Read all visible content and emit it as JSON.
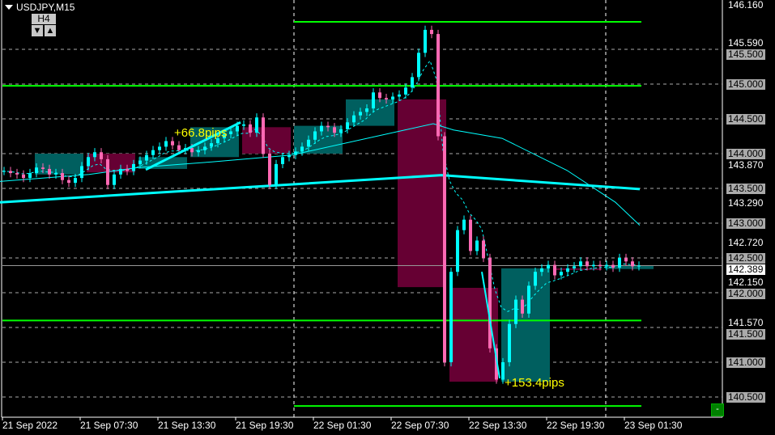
{
  "window": {
    "symbol_title": "USDJPY,M15",
    "timeframe_button": "H4",
    "down_button": "▼",
    "up_button": "▲",
    "minimize_button": "-"
  },
  "colors": {
    "background": "#000000",
    "bull": "#00ffff",
    "bear": "#ff69b4",
    "h4_bull_box": "#005f5f",
    "h4_bear_box": "#660033",
    "level_line": "#00ff00",
    "ma": "#00ffff",
    "grid": "#aaaaaa",
    "label": "#ffff00"
  },
  "chart_data": {
    "type": "candlestick",
    "symbol": "USDJPY",
    "timeframe": "M15",
    "ylim": [
      140.43,
      146.16
    ],
    "y_ticks": [
      "146.160",
      "145.590",
      "145.500",
      "145.000",
      "144.500",
      "144.000",
      "143.870",
      "143.500",
      "143.290",
      "143.000",
      "142.720",
      "142.500",
      "142.150",
      "142.000",
      "141.570",
      "141.500",
      "141.000",
      "140.500"
    ],
    "y_tick_values": [
      146.16,
      145.59,
      145.5,
      145.0,
      144.5,
      144.0,
      143.87,
      143.5,
      143.29,
      143.0,
      142.72,
      142.5,
      142.15,
      142.0,
      141.57,
      141.5,
      141.0,
      140.5
    ],
    "boxed_ticks": [
      145.5,
      145.0,
      144.5,
      144.0,
      143.5,
      143.0,
      142.5,
      142.0,
      141.5,
      141.0,
      140.5
    ],
    "current_price": "142.389",
    "x_ticks": [
      "21 Sep 2022",
      "21 Sep 07:30",
      "21 Sep 13:30",
      "21 Sep 19:30",
      "22 Sep 01:30",
      "22 Sep 07:30",
      "22 Sep 13:30",
      "22 Sep 19:30",
      "23 Sep 01:30"
    ],
    "closes_30min": [
      143.75,
      143.72,
      143.7,
      143.65,
      143.72,
      143.8,
      143.78,
      143.7,
      143.72,
      143.62,
      143.58,
      143.65,
      143.82,
      143.95,
      144.02,
      143.92,
      143.55,
      143.7,
      143.78,
      143.75,
      143.85,
      143.9,
      143.98,
      144.05,
      144.1,
      144.18,
      144.12,
      144.05,
      144.08,
      144.02,
      144.05,
      144.1,
      144.15,
      144.22,
      144.28,
      144.32,
      144.4,
      144.42,
      144.3,
      144.52,
      144.0,
      143.55,
      143.85,
      143.95,
      143.98,
      144.03,
      144.1,
      144.2,
      144.32,
      144.4,
      144.38,
      144.3,
      144.35,
      144.45,
      144.55,
      144.6,
      144.65,
      144.88,
      144.8,
      144.78,
      144.82,
      144.85,
      144.95,
      145.1,
      145.45,
      145.78,
      145.72,
      144.25,
      141.0,
      142.3,
      142.9,
      143.05,
      142.6,
      142.75,
      142.5,
      141.2,
      140.75,
      141.0,
      141.55,
      141.9,
      141.7,
      142.1,
      142.3,
      142.35,
      142.4,
      142.25,
      142.3,
      142.35,
      142.38,
      142.45,
      142.38,
      142.4,
      142.38,
      142.4,
      142.36,
      142.5,
      142.45,
      142.38,
      142.39
    ],
    "h4_candles": [
      {
        "open": 143.7,
        "close": 144.0
      },
      {
        "open": 144.0,
        "close": 143.73
      },
      {
        "open": 143.78,
        "close": 143.95
      },
      {
        "open": 143.95,
        "close": 144.38
      },
      {
        "open": 144.38,
        "close": 144.0
      },
      {
        "open": 144.0,
        "close": 144.4
      },
      {
        "open": 144.4,
        "close": 144.78
      },
      {
        "open": 144.78,
        "close": 142.08
      },
      {
        "open": 142.07,
        "close": 140.72
      },
      {
        "open": 140.72,
        "close": 142.35
      },
      {
        "open": 142.35,
        "close": 142.33
      },
      {
        "open": 142.34,
        "close": 142.39
      }
    ],
    "levels": [
      145.895,
      144.975,
      141.6,
      140.37
    ],
    "slow_ma": [
      [
        0,
        143.3
      ],
      [
        545,
        143.69
      ],
      [
        790,
        143.49
      ]
    ],
    "mid_ma": [
      [
        0,
        143.6
      ],
      [
        110,
        143.7
      ],
      [
        170,
        143.8
      ],
      [
        260,
        143.88
      ],
      [
        360,
        143.98
      ],
      [
        500,
        144.34
      ],
      [
        535,
        144.43
      ],
      [
        560,
        144.34
      ],
      [
        620,
        144.22
      ],
      [
        700,
        143.76
      ],
      [
        760,
        143.3
      ],
      [
        790,
        142.97
      ]
    ],
    "annotations": [
      {
        "text": "+66.8pips",
        "from": 143.77,
        "to": 144.45
      },
      {
        "text": "+153.4pips",
        "from": 142.3,
        "to": 140.77
      }
    ]
  }
}
